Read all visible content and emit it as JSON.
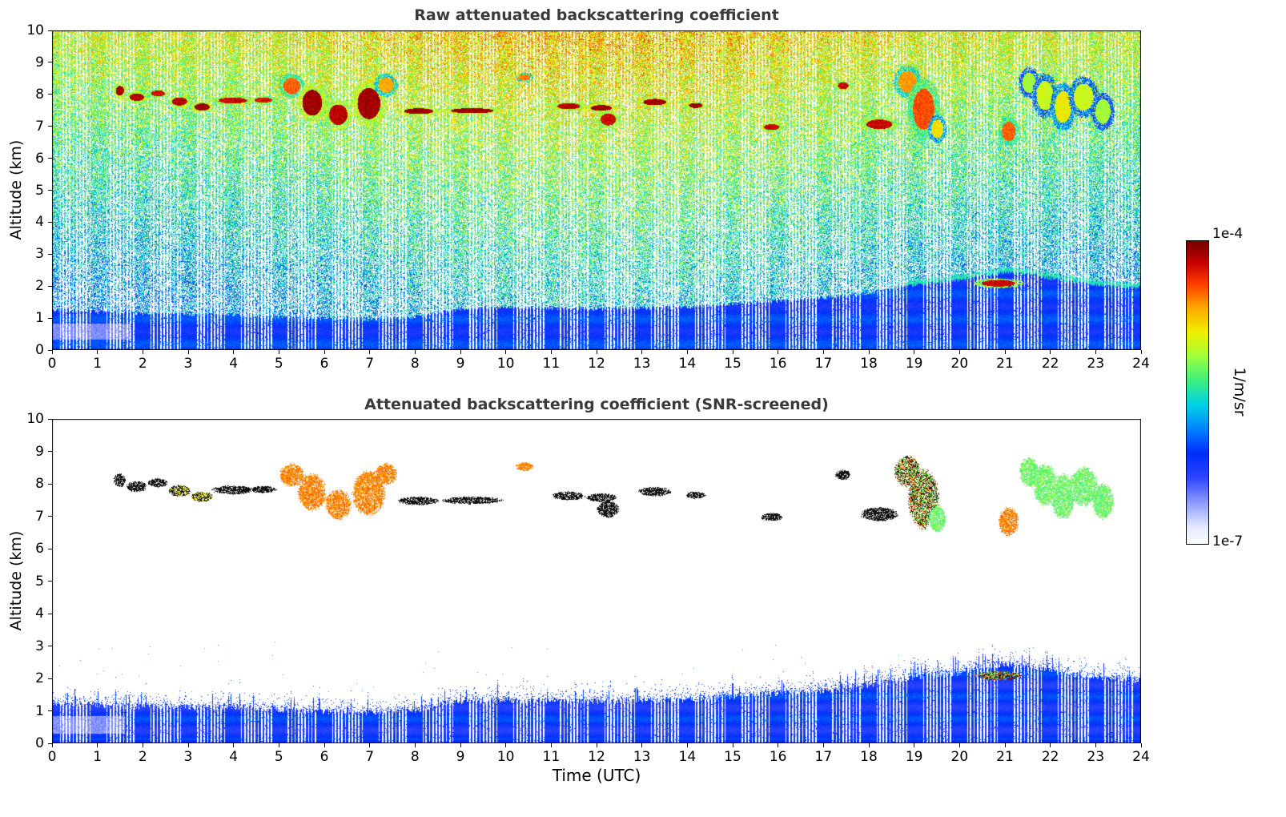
{
  "figure": {
    "background": "#ffffff",
    "title_color": "#3a3a3a"
  },
  "chart_data": {
    "type": "heatmap",
    "x_axis": {
      "label": "Time (UTC)",
      "lim": [
        0,
        24
      ],
      "ticks": [
        0,
        1,
        2,
        3,
        4,
        5,
        6,
        7,
        8,
        9,
        10,
        11,
        12,
        13,
        14,
        15,
        16,
        17,
        18,
        19,
        20,
        21,
        22,
        23,
        24
      ]
    },
    "y_axis": {
      "label": "Altitude (km)",
      "lim": [
        0,
        10
      ],
      "ticks": [
        0,
        1,
        2,
        3,
        4,
        5,
        6,
        7,
        8,
        9,
        10
      ]
    },
    "panels": [
      {
        "title": "Raw attenuated backscattering coefficient",
        "screened": false,
        "ylabel": "Altitude (km)"
      },
      {
        "title": "Attenuated backscattering coefficient (SNR-screened)",
        "screened": true,
        "ylabel": "Altitude (km)",
        "xlabel": "Time (UTC)"
      }
    ],
    "colorbar": {
      "label": "1/m/sr",
      "scale": "log",
      "vmax_label": "1e-4",
      "vmin_label": "1e-7"
    },
    "colormap_stops": [
      [
        0.0,
        255,
        255,
        255
      ],
      [
        0.06,
        226,
        232,
        255
      ],
      [
        0.13,
        150,
        162,
        255
      ],
      [
        0.22,
        45,
        70,
        255
      ],
      [
        0.3,
        0,
        45,
        250
      ],
      [
        0.38,
        0,
        130,
        255
      ],
      [
        0.46,
        0,
        210,
        230
      ],
      [
        0.54,
        60,
        240,
        130
      ],
      [
        0.62,
        160,
        255,
        60
      ],
      [
        0.7,
        240,
        240,
        0
      ],
      [
        0.78,
        255,
        170,
        0
      ],
      [
        0.86,
        255,
        60,
        0
      ],
      [
        0.93,
        200,
        0,
        0
      ],
      [
        1.0,
        118,
        0,
        0
      ]
    ],
    "boundary_layer_height_km": {
      "t": [
        0,
        2,
        4,
        6,
        7,
        8,
        9,
        10,
        12,
        14,
        16,
        17,
        18,
        19,
        20,
        21,
        21.5,
        22,
        23,
        24
      ],
      "h": [
        1.25,
        1.15,
        1.1,
        1.0,
        0.95,
        1.05,
        1.3,
        1.35,
        1.3,
        1.35,
        1.55,
        1.65,
        1.8,
        2.05,
        2.2,
        2.45,
        2.4,
        2.25,
        2.05,
        1.95
      ]
    },
    "gap_stripes": {
      "cluster_start": 0.16,
      "cluster_end": 0.84,
      "comb_freq_per_hour": 13.5,
      "comb_duty": 0.42
    },
    "noise": {
      "bg_base": 0.32,
      "bg_alt_slope": 0.034,
      "bg_day_boost": 0.09,
      "white_base": 0.46,
      "white_alt_slope": 0.034
    },
    "cloud_segments": [
      {
        "t0": 1.35,
        "t1": 1.62,
        "a0": 7.9,
        "a1": 8.35,
        "i": 0.95,
        "b": "black"
      },
      {
        "t0": 1.62,
        "t1": 2.1,
        "a0": 7.75,
        "a1": 8.1,
        "i": 0.92,
        "b": "black"
      },
      {
        "t0": 2.1,
        "t1": 2.55,
        "a0": 7.9,
        "a1": 8.18,
        "i": 0.88,
        "b": "black"
      },
      {
        "t0": 2.55,
        "t1": 3.05,
        "a0": 7.6,
        "a1": 7.98,
        "i": 0.92,
        "b": "blackyellow"
      },
      {
        "t0": 3.05,
        "t1": 3.55,
        "a0": 7.45,
        "a1": 7.78,
        "i": 0.95,
        "b": "blackyellow"
      },
      {
        "t0": 3.5,
        "t1": 4.45,
        "a0": 7.68,
        "a1": 7.96,
        "i": 0.9,
        "b": "black"
      },
      {
        "t0": 4.35,
        "t1": 4.95,
        "a0": 7.72,
        "a1": 7.95,
        "i": 0.88,
        "b": "black"
      },
      {
        "t0": 5.0,
        "t1": 5.55,
        "a0": 7.9,
        "a1": 8.65,
        "i": 0.78,
        "b": "orange"
      },
      {
        "t0": 5.4,
        "t1": 6.05,
        "a0": 7.15,
        "a1": 8.35,
        "i": 0.95,
        "b": "orange"
      },
      {
        "t0": 6.0,
        "t1": 6.6,
        "a0": 6.9,
        "a1": 7.85,
        "i": 0.92,
        "b": "orange"
      },
      {
        "t0": 6.6,
        "t1": 7.35,
        "a0": 7.0,
        "a1": 8.45,
        "i": 0.95,
        "b": "orange"
      },
      {
        "t0": 7.1,
        "t1": 7.6,
        "a0": 7.95,
        "a1": 8.65,
        "i": 0.7,
        "b": "orange"
      },
      {
        "t0": 7.6,
        "t1": 8.55,
        "a0": 7.35,
        "a1": 7.62,
        "i": 0.95,
        "b": "black"
      },
      {
        "t0": 8.55,
        "t1": 9.95,
        "a0": 7.38,
        "a1": 7.62,
        "i": 0.95,
        "b": "black"
      },
      {
        "t0": 10.2,
        "t1": 10.6,
        "a0": 8.4,
        "a1": 8.68,
        "i": 0.75,
        "b": "orange"
      },
      {
        "t0": 11.0,
        "t1": 11.75,
        "a0": 7.5,
        "a1": 7.78,
        "i": 0.92,
        "b": "black"
      },
      {
        "t0": 11.75,
        "t1": 12.45,
        "a0": 7.45,
        "a1": 7.72,
        "i": 0.95,
        "b": "black"
      },
      {
        "t0": 12.0,
        "t1": 12.5,
        "a0": 6.95,
        "a1": 7.5,
        "i": 0.9,
        "b": "black"
      },
      {
        "t0": 12.9,
        "t1": 13.65,
        "a0": 7.62,
        "a1": 7.92,
        "i": 0.95,
        "b": "black"
      },
      {
        "t0": 13.95,
        "t1": 14.4,
        "a0": 7.55,
        "a1": 7.78,
        "i": 0.95,
        "b": "black"
      },
      {
        "t0": 15.6,
        "t1": 16.1,
        "a0": 6.85,
        "a1": 7.12,
        "i": 0.9,
        "b": "black"
      },
      {
        "t0": 17.25,
        "t1": 17.6,
        "a0": 8.12,
        "a1": 8.45,
        "i": 0.9,
        "b": "black"
      },
      {
        "t0": 17.8,
        "t1": 18.65,
        "a0": 6.85,
        "a1": 7.3,
        "i": 0.9,
        "b": "black"
      },
      {
        "t0": 18.55,
        "t1": 19.15,
        "a0": 7.9,
        "a1": 8.9,
        "i": 0.72,
        "b": "mixed"
      },
      {
        "t0": 18.85,
        "t1": 19.55,
        "a0": 6.6,
        "a1": 8.5,
        "i": 0.8,
        "b": "mixed"
      },
      {
        "t0": 19.3,
        "t1": 19.7,
        "a0": 6.5,
        "a1": 7.35,
        "i": 0.62,
        "b": "green"
      },
      {
        "t0": 20.85,
        "t1": 21.3,
        "a0": 6.4,
        "a1": 7.3,
        "i": 0.78,
        "b": "orange"
      },
      {
        "t0": 21.3,
        "t1": 21.75,
        "a0": 7.9,
        "a1": 8.85,
        "i": 0.5,
        "b": "green"
      },
      {
        "t0": 21.6,
        "t1": 22.15,
        "a0": 7.3,
        "a1": 8.65,
        "i": 0.55,
        "b": "green"
      },
      {
        "t0": 22.0,
        "t1": 22.55,
        "a0": 6.9,
        "a1": 8.35,
        "i": 0.6,
        "b": "green"
      },
      {
        "t0": 22.4,
        "t1": 23.05,
        "a0": 7.3,
        "a1": 8.55,
        "i": 0.55,
        "b": "green"
      },
      {
        "t0": 22.9,
        "t1": 23.4,
        "a0": 6.9,
        "a1": 8.05,
        "i": 0.5,
        "b": "green"
      },
      {
        "t0": 20.3,
        "t1": 21.4,
        "a0": 1.95,
        "a1": 2.25,
        "i": 0.9,
        "b": "mixed"
      }
    ]
  }
}
